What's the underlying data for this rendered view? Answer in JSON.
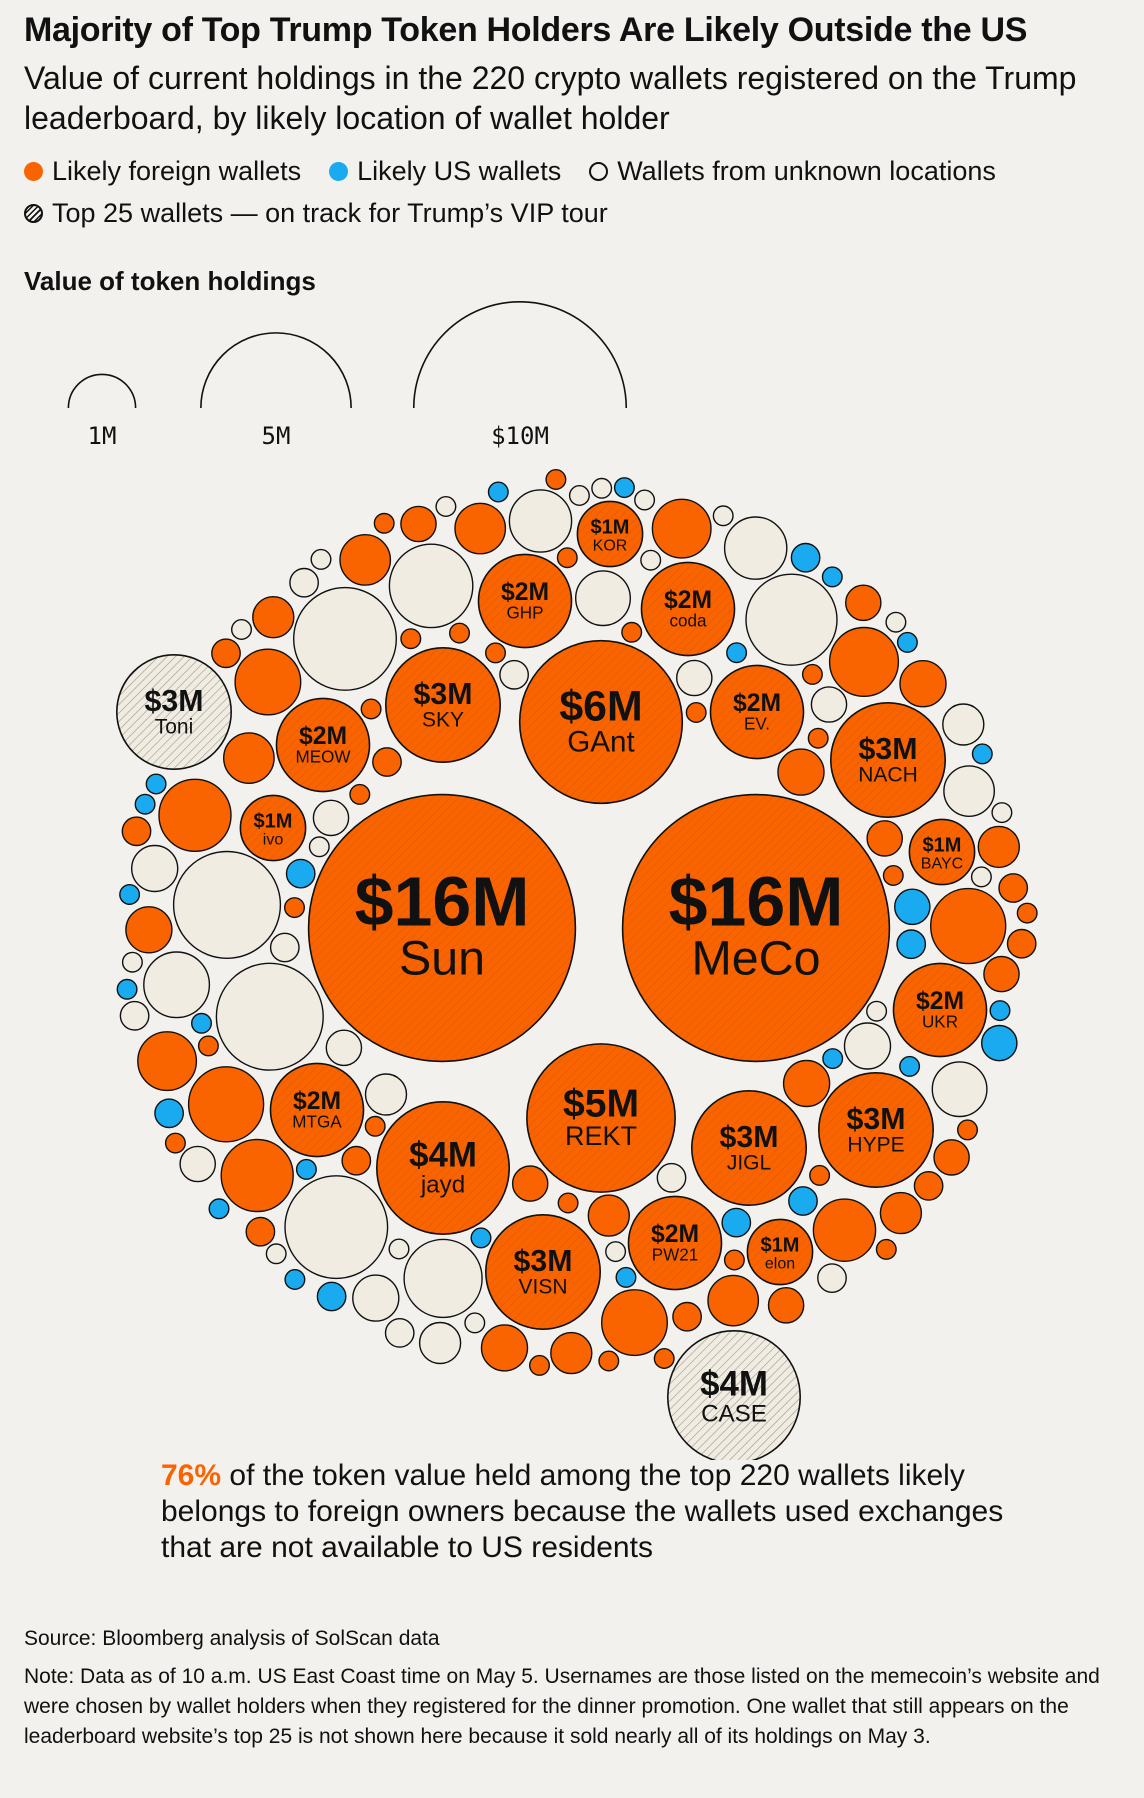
{
  "header": {
    "title": "Majority of Top Trump Token Holders Are Likely Outside the US",
    "subtitle": "Value of current holdings in the 220 crypto wallets registered on the Trump leaderboard, by likely location of wallet holder"
  },
  "legend": {
    "foreign": "Likely foreign wallets",
    "us": "Likely US wallets",
    "unknown": "Wallets from unknown locations",
    "top25": "Top 25 wallets — on track for Trump’s VIP tour"
  },
  "size_legend": {
    "title": "Value of token holdings",
    "labels": [
      "1M",
      "5M",
      "$10M"
    ]
  },
  "colors": {
    "foreign": "#fa6400",
    "us": "#1aaaf0",
    "unknown": "#f0ece2",
    "background": "#f2f1ed",
    "text": "#111111"
  },
  "chart_data": {
    "type": "packed-bubble",
    "title": "Majority of Top Trump Token Holders Are Likely Outside the US",
    "value_unit": "USD millions",
    "top25_wallets": [
      {
        "name": "Sun",
        "value_label": "$16M",
        "value": 16,
        "location": "foreign"
      },
      {
        "name": "MeCo",
        "value_label": "$16M",
        "value": 16,
        "location": "foreign"
      },
      {
        "name": "GAnt",
        "value_label": "$6M",
        "value": 6,
        "location": "foreign"
      },
      {
        "name": "REKT",
        "value_label": "$5M",
        "value": 5,
        "location": "foreign"
      },
      {
        "name": "jayd",
        "value_label": "$4M",
        "value": 4,
        "location": "foreign"
      },
      {
        "name": "CASE",
        "value_label": "$4M",
        "value": 4,
        "location": "unknown"
      },
      {
        "name": "SKY",
        "value_label": "$3M",
        "value": 3,
        "location": "foreign"
      },
      {
        "name": "NACH",
        "value_label": "$3M",
        "value": 3,
        "location": "foreign"
      },
      {
        "name": "HYPE",
        "value_label": "$3M",
        "value": 3,
        "location": "foreign"
      },
      {
        "name": "JIGL",
        "value_label": "$3M",
        "value": 3,
        "location": "foreign"
      },
      {
        "name": "VISN",
        "value_label": "$3M",
        "value": 3,
        "location": "foreign"
      },
      {
        "name": "Toni",
        "value_label": "$3M",
        "value": 3,
        "location": "unknown"
      },
      {
        "name": "GHP",
        "value_label": "$2M",
        "value": 2,
        "location": "foreign"
      },
      {
        "name": "coda",
        "value_label": "$2M",
        "value": 2,
        "location": "foreign"
      },
      {
        "name": "EV.",
        "value_label": "$2M",
        "value": 2,
        "location": "foreign"
      },
      {
        "name": "MEOW",
        "value_label": "$2M",
        "value": 2,
        "location": "foreign"
      },
      {
        "name": "MTGA",
        "value_label": "$2M",
        "value": 2,
        "location": "foreign"
      },
      {
        "name": "UKR",
        "value_label": "$2M",
        "value": 2,
        "location": "foreign"
      },
      {
        "name": "PW21",
        "value_label": "$2M",
        "value": 2,
        "location": "foreign"
      },
      {
        "name": "KOR",
        "value_label": "$1M",
        "value": 1,
        "location": "foreign"
      },
      {
        "name": "ivo",
        "value_label": "$1M",
        "value": 1,
        "location": "foreign"
      },
      {
        "name": "BAYC",
        "value_label": "$1M",
        "value": 1,
        "location": "foreign"
      },
      {
        "name": "elon",
        "value_label": "$1M",
        "value": 1,
        "location": "foreign"
      }
    ],
    "other_wallets": {
      "foreign": [
        1.3,
        1.3,
        1.2,
        1.2,
        1.1,
        1.0,
        1.0,
        0.9,
        0.8,
        0.8,
        0.6,
        0.6,
        0.6,
        0.6,
        0.5,
        0.5,
        0.5,
        0.5,
        0.5,
        0.4,
        0.4,
        0.4,
        0.4,
        0.4,
        0.3,
        0.3,
        0.3,
        0.3,
        0.3,
        0.3,
        0.3,
        0.2,
        0.2,
        0.2,
        0.2,
        0.2,
        0.2,
        0.2,
        0.2,
        0.2,
        0.1,
        0.1,
        0.1,
        0.1,
        0.1,
        0.1,
        0.1,
        0.1,
        0.1,
        0.1,
        0.1,
        0.1,
        0.1,
        0.1,
        0.1,
        0.1,
        0.1,
        0.1,
        0.1,
        0.1,
        0.1,
        0.1,
        0.1,
        0.1,
        0.1,
        0.1
      ],
      "us": [
        0.3,
        0.3,
        0.2,
        0.2,
        0.2,
        0.2,
        0.2,
        0.2,
        0.2,
        0.1,
        0.1,
        0.1,
        0.1,
        0.1,
        0.1,
        0.1,
        0.1,
        0.1,
        0.1,
        0.1,
        0.1,
        0.1,
        0.1,
        0.1,
        0.1,
        0.1,
        0.1,
        0.1
      ],
      "unknown": [
        2.6,
        2.6,
        2.4,
        2.4,
        1.9,
        1.6,
        1.4,
        1.0,
        0.9,
        0.9,
        0.7,
        0.7,
        0.6,
        0.5,
        0.5,
        0.5,
        0.4,
        0.4,
        0.4,
        0.3,
        0.3,
        0.3,
        0.3,
        0.3,
        0.2,
        0.2,
        0.2,
        0.2,
        0.2,
        0.2,
        0.2,
        0.1,
        0.1,
        0.1,
        0.1,
        0.1,
        0.1,
        0.1,
        0.1,
        0.1,
        0.1,
        0.1,
        0.1,
        0.1,
        0.1,
        0.1,
        0.1,
        0.1,
        0.1
      ]
    }
  },
  "callout": {
    "highlight": "76%",
    "text": " of the token value held among the top 220 wallets likely belongs to foreign owners because the wallets used exchanges that are not available to US residents"
  },
  "footer": {
    "source": "Source: Bloomberg analysis of SolScan data",
    "note": "Note: Data as of 10 a.m. US East Coast time on May 5. Usernames are those listed on the memecoin’s website and were chosen by wallet holders when they registered for the dinner promotion. One wallet that still appears on the leaderboard website’s top 25 is not shown here because it sold nearly all of its holdings on May 3."
  }
}
